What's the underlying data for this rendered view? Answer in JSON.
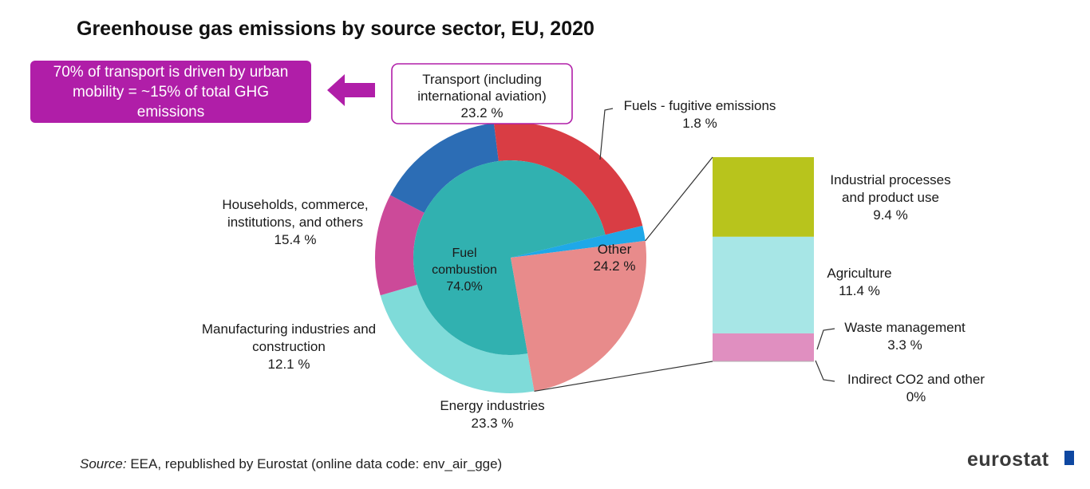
{
  "title": "Greenhouse gas emissions by source sector, EU, 2020",
  "callout": {
    "text": "70% of transport is driven by urban mobility = ~15% of total GHG emissions",
    "color": "#b01ea8"
  },
  "source_label": "Source:",
  "source_text": " EEA, republished by Eurostat (online data code: env_air_gge)",
  "logo_text": "eurostat",
  "chart_data": {
    "type": "pie",
    "title": "Greenhouse gas emissions by source sector, EU, 2020",
    "inner": [
      {
        "key": "fuel",
        "label_lines": [
          "Fuel",
          "combustion",
          "74.0%"
        ],
        "value": 74.0,
        "color": "#31b1b0"
      },
      {
        "key": "fugitive",
        "label_lines": [],
        "value": 1.8,
        "color": "#1fa8e8"
      },
      {
        "key": "other",
        "label_lines": [
          "Other",
          "24.2 %"
        ],
        "value": 24.2,
        "color": "#e88b8b"
      }
    ],
    "outer": [
      {
        "key": "transport",
        "label_lines": [
          "Transport (including",
          "international aviation)",
          "23.2 %"
        ],
        "value": 23.2,
        "color": "#d93d44"
      },
      {
        "key": "fugitive",
        "label_lines": [
          "Fuels - fugitive emissions",
          "1.8 %"
        ],
        "value": 1.8,
        "color": "#1fa8e8"
      },
      {
        "key": "other",
        "label_lines": [],
        "value": 24.2,
        "color": "#e88b8b"
      },
      {
        "key": "energy",
        "label_lines": [
          "Energy industries",
          "23.3 %"
        ],
        "value": 23.3,
        "color": "#7fdbd9"
      },
      {
        "key": "manufacturing",
        "label_lines": [
          "Manufacturing industries and",
          "construction",
          "12.1 %"
        ],
        "value": 12.1,
        "color": "#cc4a99"
      },
      {
        "key": "households",
        "label_lines": [
          "Households, commerce,",
          "institutions, and others",
          "15.4 %"
        ],
        "value": 15.4,
        "color": "#2c6db5"
      }
    ],
    "breakdown_of": "Other",
    "breakdown": [
      {
        "key": "industrial",
        "label_lines": [
          "Industrial processes",
          "and product use",
          "9.4 %"
        ],
        "value": 9.4,
        "color": "#b8c41c"
      },
      {
        "key": "agriculture",
        "label_lines": [
          "Agriculture",
          "11.4 %"
        ],
        "value": 11.4,
        "color": "#a7e6e6"
      },
      {
        "key": "waste",
        "label_lines": [
          "Waste management",
          "3.3 %"
        ],
        "value": 3.3,
        "color": "#e08fc0"
      },
      {
        "key": "indirect",
        "label_lines": [
          "Indirect CO2 and other",
          "0%"
        ],
        "value": 0.0,
        "color": "#c8c8c8"
      }
    ]
  }
}
